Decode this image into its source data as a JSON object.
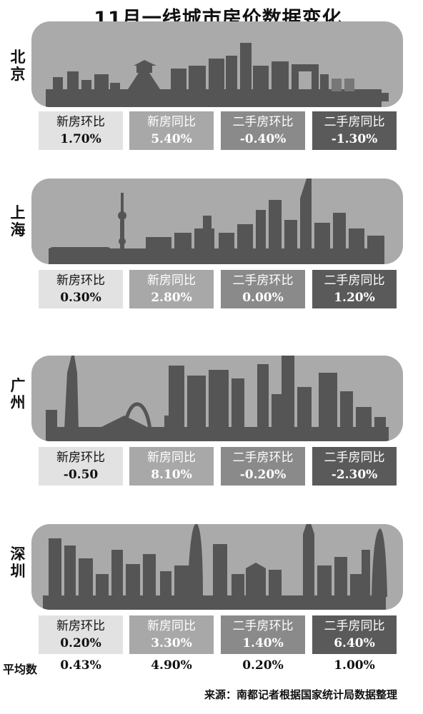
{
  "title": "11月一线城市房价数据变化",
  "colors": {
    "sky": "#aaaaaa",
    "building": "#555555",
    "cell_1": "#e2e2e2",
    "cell_2": "#a8a8a8",
    "cell_3": "#8a8a8a",
    "cell_4": "#5a5a5a"
  },
  "stat_labels": [
    "新房环比",
    "新房同比",
    "二手房环比",
    "二手房同比"
  ],
  "cities": [
    {
      "name": "北京",
      "values": [
        "1.70%",
        "5.40%",
        "-0.40%",
        "-1.30%"
      ]
    },
    {
      "name": "上海",
      "values": [
        "0.30%",
        "2.80%",
        "0.00%",
        "1.20%"
      ]
    },
    {
      "name": "广州",
      "values": [
        "-0.50",
        "8.10%",
        "-0.20%",
        "-2.30%"
      ]
    },
    {
      "name": "深圳",
      "values": [
        "0.20%",
        "3.30%",
        "1.40%",
        "6.40%"
      ]
    }
  ],
  "average": {
    "label": "平均数",
    "values": [
      "0.43%",
      "4.90%",
      "0.20%",
      "1.00%"
    ]
  },
  "source": "来源：南都记者根据国家统计局数据整理"
}
